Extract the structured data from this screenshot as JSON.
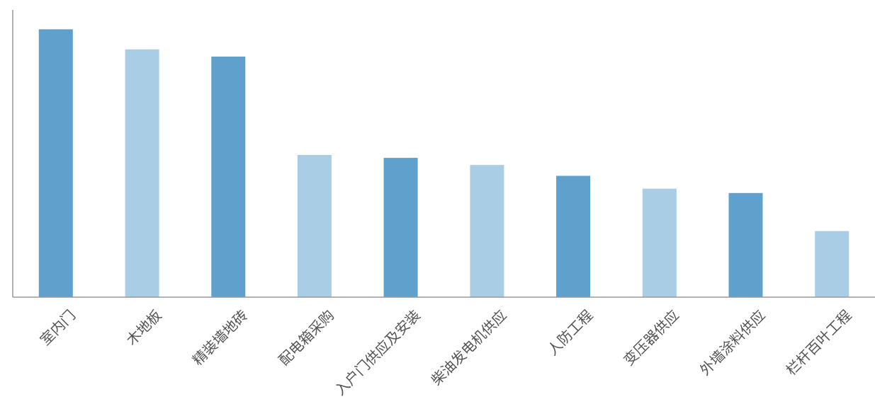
{
  "chart_data": {
    "type": "bar",
    "categories": [
      "室内门",
      "木地板",
      "精装墙地砖",
      "配电箱采购",
      "入户门供应及安装",
      "柴油发电机供应",
      "人防工程",
      "变压器供应",
      "外墙涂料供应",
      "栏杆百叶工程"
    ],
    "values": [
      373,
      345,
      335,
      198,
      194,
      184,
      169,
      151,
      145,
      92
    ],
    "ylim": [
      0,
      400
    ],
    "grid": false,
    "legend": "none",
    "colors": [
      "#5fa0cd",
      "#a8cde4"
    ],
    "axis_color": "#999999"
  }
}
